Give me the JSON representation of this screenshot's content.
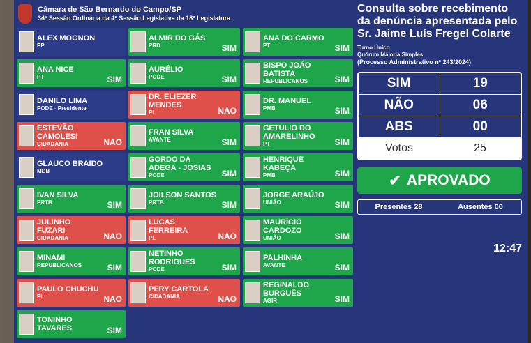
{
  "header": {
    "title": "Câmara de São Bernardo do Campo/SP",
    "subtitle": "34ª Sessão Ordinária da 4ª Sessão Legislativa da 18ª Legislatura"
  },
  "columns": [
    [
      {
        "name": "ALEX MOGNON",
        "party": "PP",
        "vote": ""
      },
      {
        "name": "ANA NICE",
        "party": "PT",
        "vote": "SIM"
      },
      {
        "name": "DANILO LIMA",
        "party": "PODE - Presidente",
        "vote": ""
      },
      {
        "name": "ESTEVÃO CAMOLESI",
        "party": "CIDADANIA",
        "vote": "NAO"
      },
      {
        "name": "GLAUCO BRAIDO",
        "party": "MDB",
        "vote": ""
      },
      {
        "name": "IVAN SILVA",
        "party": "PRTB",
        "vote": "SIM"
      },
      {
        "name": "JULINHO FUZARI",
        "party": "CIDADANIA",
        "vote": "NAO"
      },
      {
        "name": "MINAMI",
        "party": "REPUBLICANOS",
        "vote": "SIM"
      },
      {
        "name": "PAULO CHUCHU",
        "party": "PL",
        "vote": "NAO"
      },
      {
        "name": "TONINHO TAVARES",
        "party": "",
        "vote": "SIM"
      }
    ],
    [
      {
        "name": "ALMIR DO GÁS",
        "party": "PRD",
        "vote": "SIM"
      },
      {
        "name": "AURÉLIO",
        "party": "PODE",
        "vote": "SIM"
      },
      {
        "name": "DR. ELIEZER MENDES",
        "party": "PL",
        "vote": "NAO"
      },
      {
        "name": "FRAN SILVA",
        "party": "AVANTE",
        "vote": "SIM"
      },
      {
        "name": "GORDO DA ADEGA - JOSIAS",
        "party": "PODE",
        "vote": "SIM"
      },
      {
        "name": "JOILSON SANTOS",
        "party": "PRTB",
        "vote": "SIM"
      },
      {
        "name": "LUCAS FERREIRA",
        "party": "PL",
        "vote": "NAO"
      },
      {
        "name": "NETINHO RODRIGUES",
        "party": "PODE",
        "vote": "SIM"
      },
      {
        "name": "PERY CARTOLA",
        "party": "CIDADANIA",
        "vote": "NAO"
      }
    ],
    [
      {
        "name": "ANA DO CARMO",
        "party": "PT",
        "vote": "SIM"
      },
      {
        "name": "BISPO JOÃO BATISTA",
        "party": "REPUBLICANOS",
        "vote": "SIM"
      },
      {
        "name": "DR. MANUEL",
        "party": "PMB",
        "vote": "SIM"
      },
      {
        "name": "GETULIO DO AMARELINHO",
        "party": "PT",
        "vote": "SIM"
      },
      {
        "name": "HENRIQUE KABEÇA",
        "party": "PMB",
        "vote": "SIM"
      },
      {
        "name": "JORGE ARAÚJO",
        "party": "UNIÃO",
        "vote": "SIM"
      },
      {
        "name": "MAURÍCIO CARDOZO",
        "party": "UNIÃO",
        "vote": "SIM"
      },
      {
        "name": "PALHINHA",
        "party": "AVANTE",
        "vote": "SIM"
      },
      {
        "name": "REGINALDO BURGUÊS",
        "party": "AGIR",
        "vote": "SIM"
      }
    ]
  ],
  "panel": {
    "title": "Consulta sobre recebimento da denúncia apresentada pelo Sr. Jaime Luís Fregel Colarte",
    "turno": "Turno Único",
    "quorum": "Quórum Maioria Simples",
    "processo": "(Processo Administrativo nº 243/2024)",
    "results": [
      {
        "label": "SIM",
        "value": "19"
      },
      {
        "label": "NÃO",
        "value": "06"
      },
      {
        "label": "ABS",
        "value": "00"
      },
      {
        "label": "Votos",
        "value": "25"
      }
    ],
    "status": "APROVADO",
    "presentes_label": "Presentes",
    "presentes": "28",
    "ausentes_label": "Ausentes",
    "ausentes": "00",
    "clock": "12:47"
  },
  "colors": {
    "sim": "#1fa64a",
    "nao": "#e0504a",
    "board": "#27357a"
  }
}
